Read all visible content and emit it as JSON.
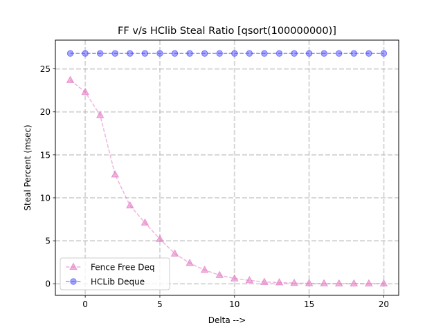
{
  "chart_data": {
    "type": "line",
    "title": "FF v/s HClib Steal Ratio [qsort(100000000)]",
    "xlabel": "Delta -->",
    "ylabel": "Steal Percent (msec)",
    "xlim": [
      -2,
      21
    ],
    "ylim": [
      -1.35,
      28.35
    ],
    "xticks": [
      0,
      5,
      10,
      15,
      20
    ],
    "yticks": [
      0,
      5,
      10,
      15,
      20,
      25
    ],
    "grid": true,
    "legend_position": "lower-left",
    "x": [
      -1,
      0,
      1,
      2,
      3,
      4,
      5,
      6,
      7,
      8,
      9,
      10,
      11,
      12,
      13,
      14,
      15,
      16,
      17,
      18,
      19,
      20
    ],
    "series": [
      {
        "name": "Fence Free Deq",
        "color": "#e377c2",
        "marker": "triangle",
        "values": [
          23.7,
          22.3,
          19.6,
          12.7,
          9.1,
          7.1,
          5.2,
          3.5,
          2.4,
          1.6,
          1.0,
          0.6,
          0.4,
          0.2,
          0.15,
          0.08,
          0.05,
          0.03,
          0.02,
          0.02,
          0.02,
          0.02
        ]
      },
      {
        "name": "HCLib Deque",
        "color": "#3b3bff",
        "marker": "circle",
        "values": [
          26.8,
          26.8,
          26.8,
          26.8,
          26.8,
          26.8,
          26.8,
          26.8,
          26.8,
          26.8,
          26.8,
          26.8,
          26.8,
          26.8,
          26.8,
          26.8,
          26.8,
          26.8,
          26.8,
          26.8,
          26.8,
          26.8
        ]
      }
    ]
  }
}
